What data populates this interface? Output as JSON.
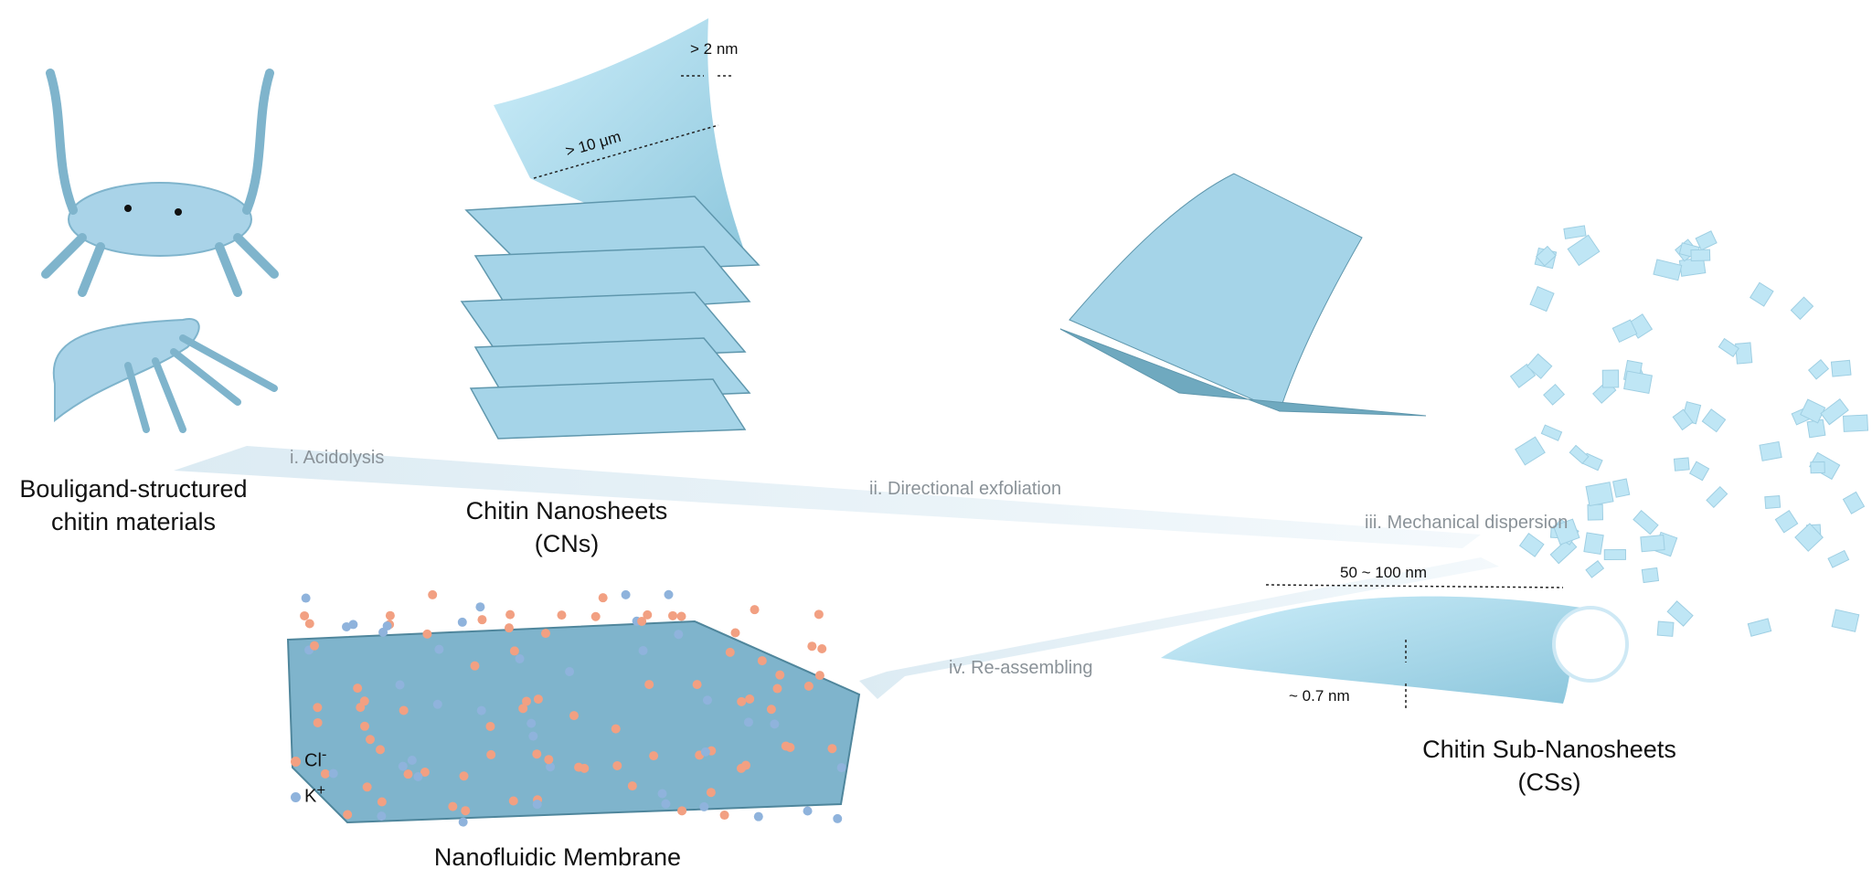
{
  "labels": {
    "source_line1": "Bouligand-structured",
    "source_line2": "chitin materials",
    "cns_line1": "Chitin Nanosheets",
    "cns_line2": "(CNs)",
    "css_line1": "Chitin Sub-Nanosheets",
    "css_line2": "(CSs)",
    "membrane": "Nanofluidic Membrane"
  },
  "steps": {
    "step1": "i. Acidolysis",
    "step2": "ii. Directional exfoliation",
    "step3": "iii. Mechanical dispersion",
    "step4": "iv. Re-assembling"
  },
  "dimensions": {
    "thickness_cn": "> 2 nm",
    "length_cn": "> 10 μm",
    "length_cs": "50 ~ 100 nm",
    "thickness_cs": "~ 0.7 nm"
  },
  "legend": {
    "cl": "Cl",
    "cl_sup": "-",
    "k": "K",
    "k_sup": "+"
  },
  "colors": {
    "sheet": "#bfe6f5",
    "sheet_dark": "#6fa9bf",
    "cl_ion": "#f2a082",
    "k_ion": "#8fb3dc",
    "arrow_band": "#e6f2f8",
    "step_text": "#8a9298"
  }
}
